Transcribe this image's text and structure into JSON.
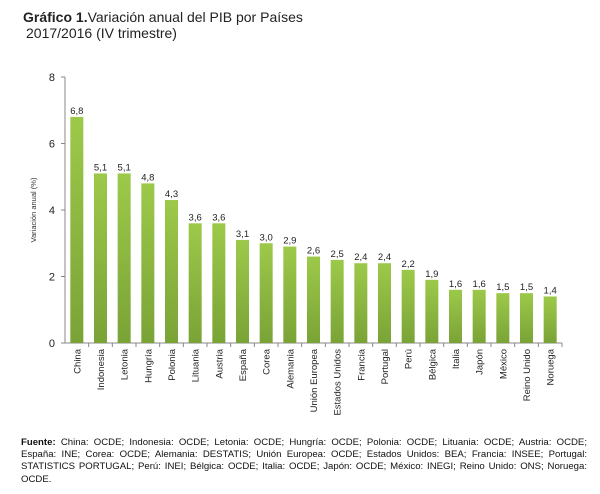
{
  "header": {
    "title_bold": "Gráfico 1.",
    "title_rest": "Variación anual del PIB por Países",
    "subtitle": "2017/2016 (IV trimestre)"
  },
  "chart_data": {
    "type": "bar",
    "title": "Variación anual del PIB por Países 2017/2016 (IV trimestre)",
    "ylabel": "Variación anual (%)",
    "xlabel": "",
    "ylim": [
      0,
      8
    ],
    "yticks": [
      "0",
      "2",
      "4",
      "6",
      "8"
    ],
    "grid": false,
    "bar_color_top": "#9dc94a",
    "bar_color_bottom": "#7aa336",
    "categories": [
      "China",
      "Indonesia",
      "Letonia",
      "Hungría",
      "Polonia",
      "Lituania",
      "Austria",
      "España",
      "Corea",
      "Alemania",
      "Unión Europea",
      "Estados Unidos",
      "Francia",
      "Portugal",
      "Perú",
      "Bélgica",
      "Italia",
      "Japón",
      "México",
      "Reino Unido",
      "Noruega"
    ],
    "values": [
      6.8,
      5.1,
      5.1,
      4.8,
      4.3,
      3.6,
      3.6,
      3.1,
      3.0,
      2.9,
      2.6,
      2.5,
      2.4,
      2.4,
      2.2,
      1.9,
      1.6,
      1.6,
      1.5,
      1.5,
      1.4
    ],
    "labels": [
      "6,8",
      "5,1",
      "5,1",
      "4,8",
      "4,3",
      "3,6",
      "3,6",
      "3,1",
      "3,0",
      "2,9",
      "2,6",
      "2,5",
      "2,4",
      "2,4",
      "2,2",
      "1,9",
      "1,6",
      "1,6",
      "1,5",
      "1,5",
      "1,4"
    ]
  },
  "source": {
    "label": "Fuente:",
    "text": " China: OCDE; Indonesia: OCDE; Letonia: OCDE; Hungría: OCDE; Polonia: OCDE; Lituania: OCDE; Austria: OCDE; España: INE; Corea: OCDE; Alemania: DESTATIS; Unión Europea: OCDE; Estados Unidos: BEA; Francia: INSEE; Portugal: STATISTICS PORTUGAL; Perú: INEI; Bélgica: OCDE; Italia: OCDE; Japón: OCDE; México: INEGI; Reino Unido: ONS; Noruega: OCDE."
  }
}
